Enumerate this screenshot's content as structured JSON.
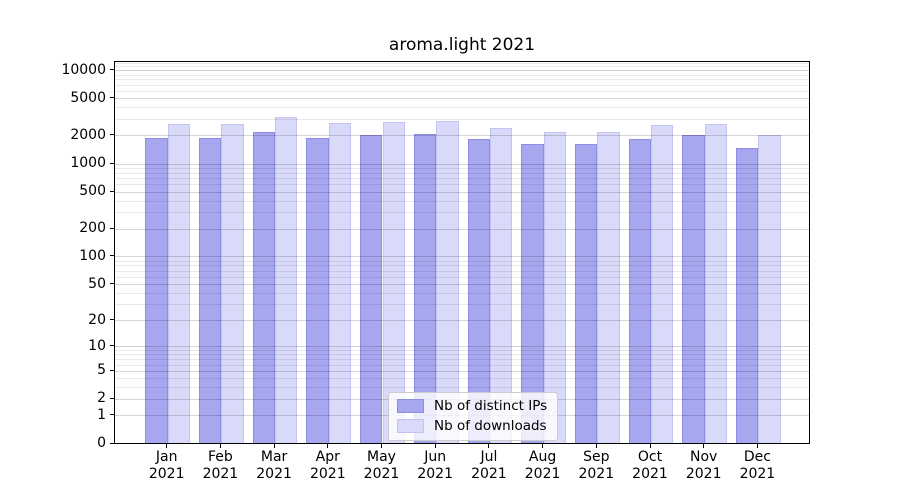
{
  "figure": {
    "background": "#ffffff"
  },
  "chart_data": {
    "type": "bar",
    "title": "aroma.light 2021",
    "xlabel": "",
    "ylabel": "",
    "categories": [
      "Jan",
      "Feb",
      "Mar",
      "Apr",
      "May",
      "Jun",
      "Jul",
      "Aug",
      "Sep",
      "Oct",
      "Nov",
      "Dec"
    ],
    "category_year": "2021",
    "series": [
      {
        "name": "Nb of distinct IPs",
        "color": "#a7a7f0",
        "edge_color": "#8d8de4",
        "values": [
          1870,
          1850,
          2180,
          1880,
          1990,
          2070,
          1810,
          1600,
          1600,
          1830,
          1990,
          1450
        ]
      },
      {
        "name": "Nb of downloads",
        "color": "#d9d9f9",
        "edge_color": "#c4c4f2",
        "values": [
          2630,
          2650,
          3100,
          2680,
          2790,
          2840,
          2370,
          2180,
          2170,
          2590,
          2650,
          2000
        ]
      }
    ],
    "yscale": "log1p",
    "ylim": [
      0,
      12250
    ],
    "yticks": [
      0,
      1,
      2,
      5,
      10,
      20,
      50,
      100,
      200,
      500,
      1000,
      2000,
      5000,
      10000
    ],
    "grid": "horizontal major+minor, drawn over bars",
    "legend_position": "inside bottom-center",
    "colors": {
      "grid_major": "rgba(0,0,0,0.16)",
      "grid_minor": "rgba(0,0,0,0.085)",
      "axis": "#000000",
      "text": "#000000",
      "legend_border": "#cccccc"
    }
  }
}
